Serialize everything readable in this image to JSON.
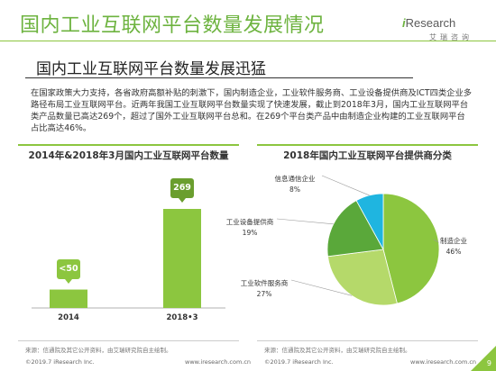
{
  "header": {
    "title": "国内工业互联网平台数量发展情况",
    "logo_brand": "Research",
    "logo_brand_prefix": "i",
    "logo_sub": "艾瑞咨询"
  },
  "section": {
    "subtitle": "国内工业互联网平台数量发展迅猛",
    "paragraph": "在国家政策大力支持，各省政府高额补贴的刺激下，国内制造企业，工业软件服务商、工业设备提供商及ICT四类企业多路径布局工业互联网平台。近两年我国工业互联网平台数量实现了快速发展，截止到2018年3月，国内工业互联网平台类产品数量已高达269个，超过了国外工业互联网平台总和。在269个平台类产品中由制造企业构建的工业互联网平台占比高达46%。"
  },
  "chart_data": [
    {
      "type": "bar",
      "title": "2014年&2018年3月国内工业互联网平台数量",
      "categories": [
        "2014",
        "2018•3"
      ],
      "values": [
        50,
        269
      ],
      "value_labels": [
        "<50",
        "269"
      ],
      "xlabel": "",
      "ylabel": "",
      "color": "#8cc63f",
      "grid": false
    },
    {
      "type": "pie",
      "title": "2018年国内工业互联网平台提供商分类",
      "slices": [
        {
          "label": "制造企业",
          "value": 46,
          "value_label": "46%",
          "color": "#8cc63f"
        },
        {
          "label": "工业软件服务商",
          "value": 27,
          "value_label": "27%",
          "color": "#b5d96a"
        },
        {
          "label": "工业设备提供商",
          "value": 19,
          "value_label": "19%",
          "color": "#5aa83a"
        },
        {
          "label": "信息通信企业",
          "value": 8,
          "value_label": "8%",
          "color": "#1fb5e0"
        }
      ]
    }
  ],
  "footer": {
    "source_left": "来源：信通院及其它公开资料，由艾瑞研究院自主绘制。",
    "source_right": "来源：信通院及其它公开资料，由艾瑞研究院自主绘制。",
    "copyright_left": "©2019.7 iResearch Inc.",
    "url_left": "www.iresearch.com.cn",
    "copyright_right": "©2019.7 iResearch Inc.",
    "url_right": "www.iresearch.com.cn",
    "page_number": "9"
  }
}
